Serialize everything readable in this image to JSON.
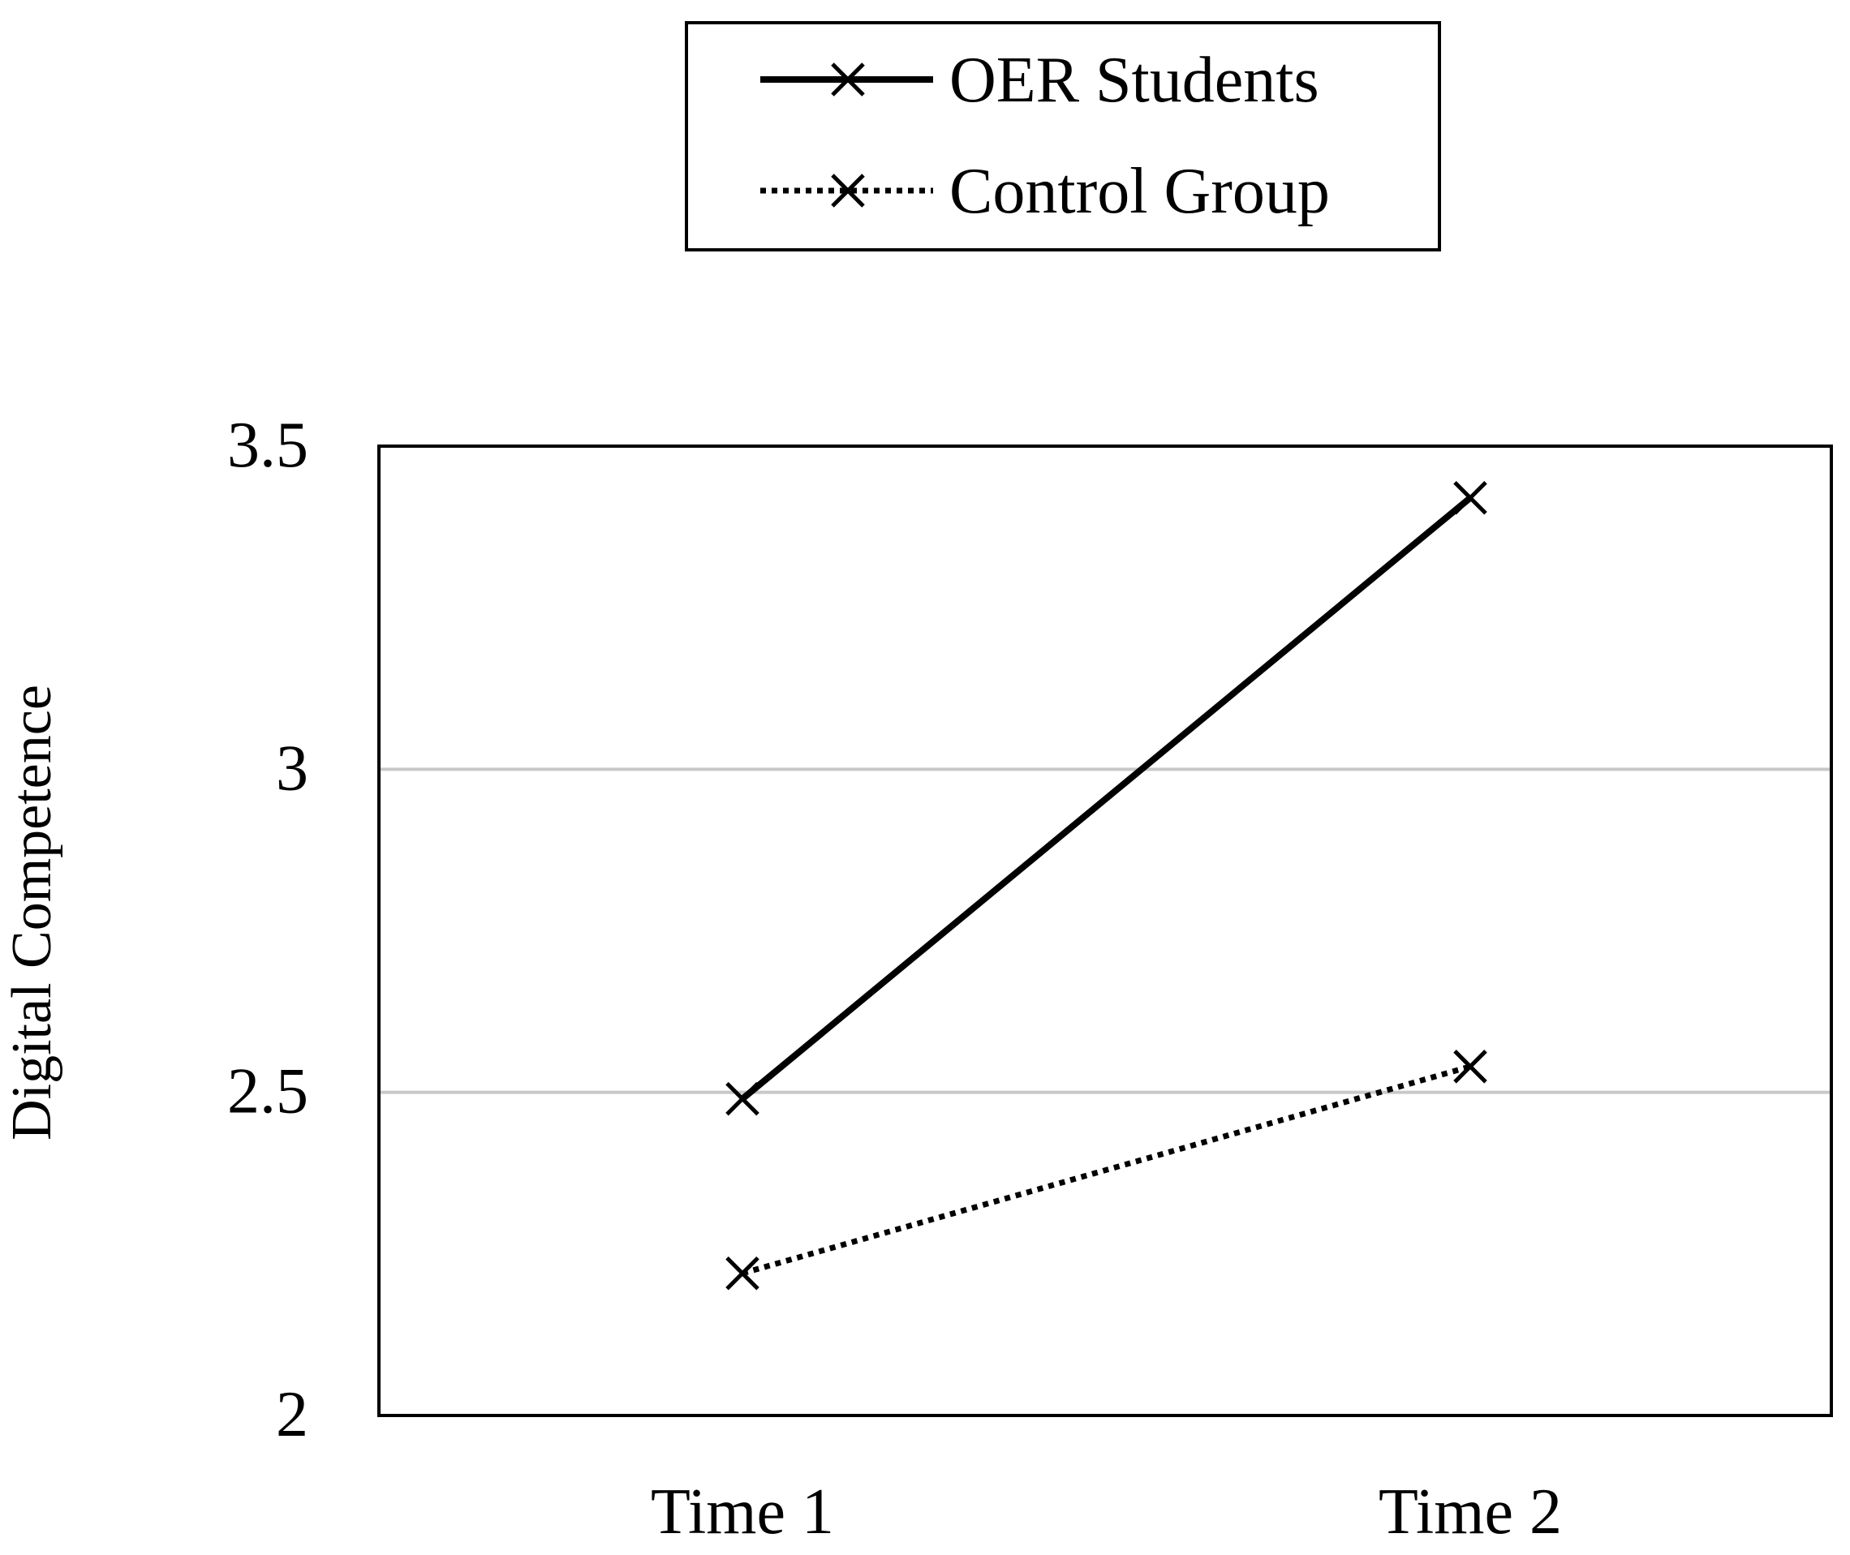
{
  "chart_data": {
    "type": "line",
    "title": "",
    "xlabel": "",
    "ylabel": "Digital Competence",
    "categories": [
      "Time 1",
      "Time 2"
    ],
    "ylim": [
      2,
      3.5
    ],
    "yticks": [
      "2",
      "2.5",
      "3",
      "3.5"
    ],
    "ytick_values": [
      2,
      2.5,
      3,
      3.5
    ],
    "gridlines": [
      2.5,
      3
    ],
    "grid": true,
    "legend": "top-center",
    "series": [
      {
        "name": "OER Students",
        "values": [
          2.49,
          3.42
        ],
        "line_style": "solid",
        "marker": "x"
      },
      {
        "name": "Control Group",
        "values": [
          2.22,
          2.54
        ],
        "line_style": "dotted",
        "marker": "x"
      }
    ]
  }
}
